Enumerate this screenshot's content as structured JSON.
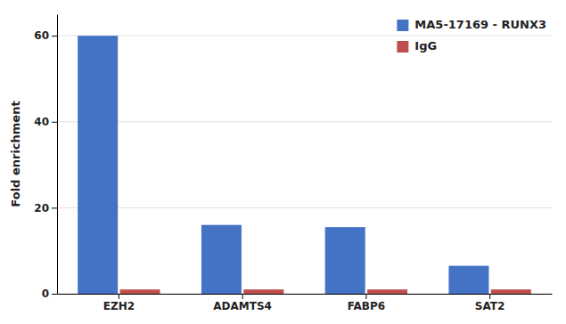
{
  "chart_data": {
    "type": "bar",
    "categories": [
      "EZH2",
      "ADAMTS4",
      "FABP6",
      "SAT2"
    ],
    "series": [
      {
        "name": "MA5-17169 - RUNX3",
        "color": "#4472C4",
        "values": [
          60,
          16,
          15.5,
          6.5
        ]
      },
      {
        "name": "IgG",
        "color": "#C0504D",
        "values": [
          1,
          1,
          1,
          1
        ]
      }
    ],
    "ylabel": "Fold enrichment",
    "ylim": [
      0,
      65
    ],
    "yticks": [
      0,
      20,
      40,
      60
    ],
    "grid": true,
    "legend": "upper right"
  }
}
